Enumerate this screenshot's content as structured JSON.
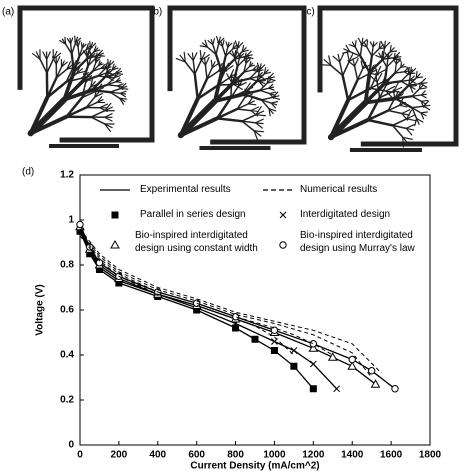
{
  "panel_labels": [
    "(a)",
    "(b)",
    "(c)"
  ],
  "chart_data": {
    "type": "line",
    "panel_label": "(d)",
    "x_label": "Current Density (mA/cm^2)",
    "y_label": "Voltage (V)",
    "xlim": [
      0,
      1800
    ],
    "xticks": [
      0,
      200,
      400,
      600,
      800,
      1000,
      1200,
      1400,
      1600,
      1800
    ],
    "ylim": [
      0,
      1.2
    ],
    "yticks": [
      0,
      0.2,
      0.4,
      0.6,
      0.8,
      1,
      1.2
    ],
    "legend": [
      {
        "label": "Experimental results",
        "line": "solid"
      },
      {
        "label": "Numerical results",
        "line": "dashed"
      },
      {
        "label": "Parallel in series design",
        "marker": "square"
      },
      {
        "label": "Interdigitated design",
        "marker": "x"
      },
      {
        "label": "Bio-inspired interdigitated design using constant width",
        "marker": "triangle"
      },
      {
        "label": "Bio-inspired interdigitated design using Murray's law",
        "marker": "circle"
      }
    ],
    "series": [
      {
        "line": "solid",
        "marker": "square",
        "x": [
          0,
          50,
          100,
          200,
          400,
          600,
          800,
          900,
          1000,
          1100,
          1200
        ],
        "values": [
          0.95,
          0.85,
          0.78,
          0.72,
          0.66,
          0.6,
          0.52,
          0.47,
          0.42,
          0.35,
          0.25
        ]
      },
      {
        "line": "solid",
        "marker": "x",
        "x": [
          0,
          50,
          100,
          200,
          400,
          600,
          800,
          1000,
          1100,
          1200,
          1320
        ],
        "values": [
          0.96,
          0.86,
          0.79,
          0.73,
          0.67,
          0.61,
          0.54,
          0.46,
          0.42,
          0.36,
          0.25
        ]
      },
      {
        "line": "solid",
        "marker": "triangle",
        "x": [
          0,
          50,
          100,
          200,
          400,
          600,
          800,
          1000,
          1200,
          1300,
          1400,
          1520
        ],
        "values": [
          0.97,
          0.87,
          0.8,
          0.74,
          0.67,
          0.62,
          0.56,
          0.5,
          0.43,
          0.39,
          0.35,
          0.27
        ]
      },
      {
        "line": "solid",
        "marker": "circle",
        "x": [
          0,
          50,
          100,
          200,
          400,
          600,
          800,
          1000,
          1200,
          1400,
          1500,
          1620
        ],
        "values": [
          0.98,
          0.88,
          0.81,
          0.75,
          0.68,
          0.63,
          0.57,
          0.51,
          0.45,
          0.38,
          0.33,
          0.25
        ]
      },
      {
        "line": "dashed",
        "x": [
          0,
          100,
          200,
          400,
          600,
          800,
          900,
          1000,
          1100
        ],
        "values": [
          0.93,
          0.82,
          0.75,
          0.67,
          0.62,
          0.56,
          0.53,
          0.48,
          0.4
        ]
      },
      {
        "line": "dashed",
        "x": [
          0,
          100,
          200,
          400,
          600,
          800,
          1000,
          1100,
          1200,
          1300
        ],
        "values": [
          0.94,
          0.83,
          0.76,
          0.68,
          0.63,
          0.57,
          0.52,
          0.49,
          0.45,
          0.4
        ]
      },
      {
        "line": "dashed",
        "x": [
          0,
          100,
          200,
          400,
          600,
          800,
          1000,
          1200,
          1400,
          1500
        ],
        "values": [
          0.95,
          0.84,
          0.77,
          0.69,
          0.64,
          0.58,
          0.54,
          0.49,
          0.41,
          0.3
        ]
      },
      {
        "line": "dashed",
        "x": [
          0,
          100,
          200,
          400,
          600,
          800,
          1000,
          1200,
          1400,
          1550
        ],
        "values": [
          0.96,
          0.85,
          0.78,
          0.7,
          0.65,
          0.59,
          0.55,
          0.51,
          0.45,
          0.32
        ]
      }
    ]
  }
}
